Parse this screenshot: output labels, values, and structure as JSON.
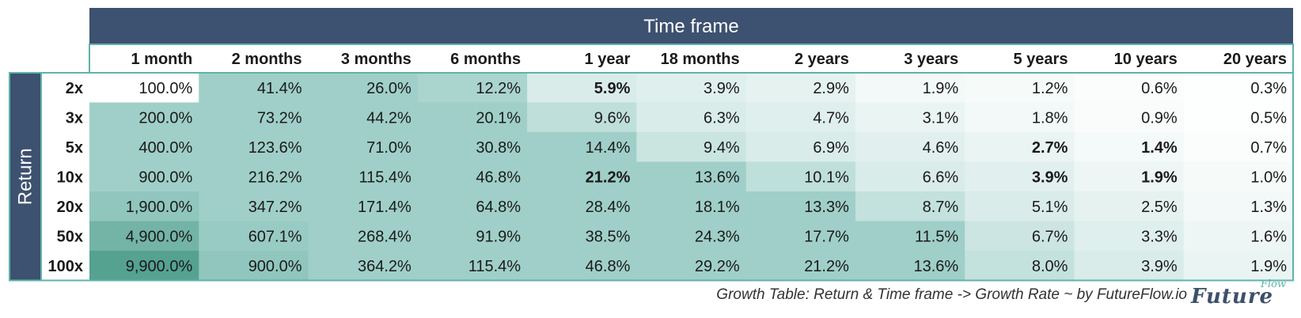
{
  "chart_data": {
    "type": "table",
    "title": "Growth Table: Return & Time frame -> Growth Rate ~ by FutureFlow.io",
    "column_header": "Time frame",
    "row_header": "Return",
    "columns": [
      "1 month",
      "2 months",
      "3 months",
      "6 months",
      "1 year",
      "18 months",
      "2 years",
      "3 years",
      "5 years",
      "10 years",
      "20 years"
    ],
    "rows": [
      "2x",
      "3x",
      "5x",
      "10x",
      "20x",
      "50x",
      "100x"
    ],
    "cells": [
      [
        "100.0%",
        "41.4%",
        "26.0%",
        "12.2%",
        "5.9%",
        "3.9%",
        "2.9%",
        "1.9%",
        "1.2%",
        "0.6%",
        "0.3%"
      ],
      [
        "200.0%",
        "73.2%",
        "44.2%",
        "20.1%",
        "9.6%",
        "6.3%",
        "4.7%",
        "3.1%",
        "1.8%",
        "0.9%",
        "0.5%"
      ],
      [
        "400.0%",
        "123.6%",
        "71.0%",
        "30.8%",
        "14.4%",
        "9.4%",
        "6.9%",
        "4.6%",
        "2.7%",
        "1.4%",
        "0.7%"
      ],
      [
        "900.0%",
        "216.2%",
        "115.4%",
        "46.8%",
        "21.2%",
        "13.6%",
        "10.1%",
        "6.6%",
        "3.9%",
        "1.9%",
        "1.0%"
      ],
      [
        "1,900.0%",
        "347.2%",
        "171.4%",
        "64.8%",
        "28.4%",
        "18.1%",
        "13.3%",
        "8.7%",
        "5.1%",
        "2.5%",
        "1.3%"
      ],
      [
        "4,900.0%",
        "607.1%",
        "268.4%",
        "91.9%",
        "38.5%",
        "24.3%",
        "17.7%",
        "11.5%",
        "6.7%",
        "3.3%",
        "1.6%"
      ],
      [
        "9,900.0%",
        "900.0%",
        "364.2%",
        "115.4%",
        "46.8%",
        "29.2%",
        "21.2%",
        "13.6%",
        "8.0%",
        "3.9%",
        "1.9%"
      ]
    ],
    "bold_cells": [
      [
        0,
        4
      ],
      [
        2,
        8
      ],
      [
        2,
        9
      ],
      [
        3,
        4
      ],
      [
        3,
        8
      ],
      [
        3,
        9
      ]
    ],
    "cell_shades": [
      [
        0.0,
        0.45,
        0.45,
        0.4,
        0.18,
        0.15,
        0.12,
        0.06,
        0.04,
        0.02,
        0.01
      ],
      [
        0.45,
        0.45,
        0.45,
        0.45,
        0.3,
        0.18,
        0.15,
        0.1,
        0.06,
        0.03,
        0.01
      ],
      [
        0.45,
        0.45,
        0.45,
        0.45,
        0.45,
        0.25,
        0.18,
        0.14,
        0.1,
        0.05,
        0.02
      ],
      [
        0.45,
        0.45,
        0.45,
        0.45,
        0.45,
        0.45,
        0.3,
        0.18,
        0.14,
        0.08,
        0.04
      ],
      [
        0.55,
        0.45,
        0.45,
        0.45,
        0.45,
        0.45,
        0.45,
        0.28,
        0.18,
        0.12,
        0.06
      ],
      [
        0.75,
        0.5,
        0.45,
        0.45,
        0.45,
        0.45,
        0.45,
        0.45,
        0.24,
        0.15,
        0.08
      ],
      [
        0.95,
        0.55,
        0.45,
        0.45,
        0.45,
        0.45,
        0.45,
        0.45,
        0.28,
        0.18,
        0.1
      ]
    ],
    "colors": {
      "header_bg": "#3d5170",
      "header_text": "#ffffff",
      "border": "#5fb3a8",
      "shade_light": "#ffffff",
      "shade_mid": "#9fcfc8",
      "shade_dark": "#4e9e8c"
    }
  },
  "logo": {
    "main": "Future",
    "sub": "Flow"
  }
}
